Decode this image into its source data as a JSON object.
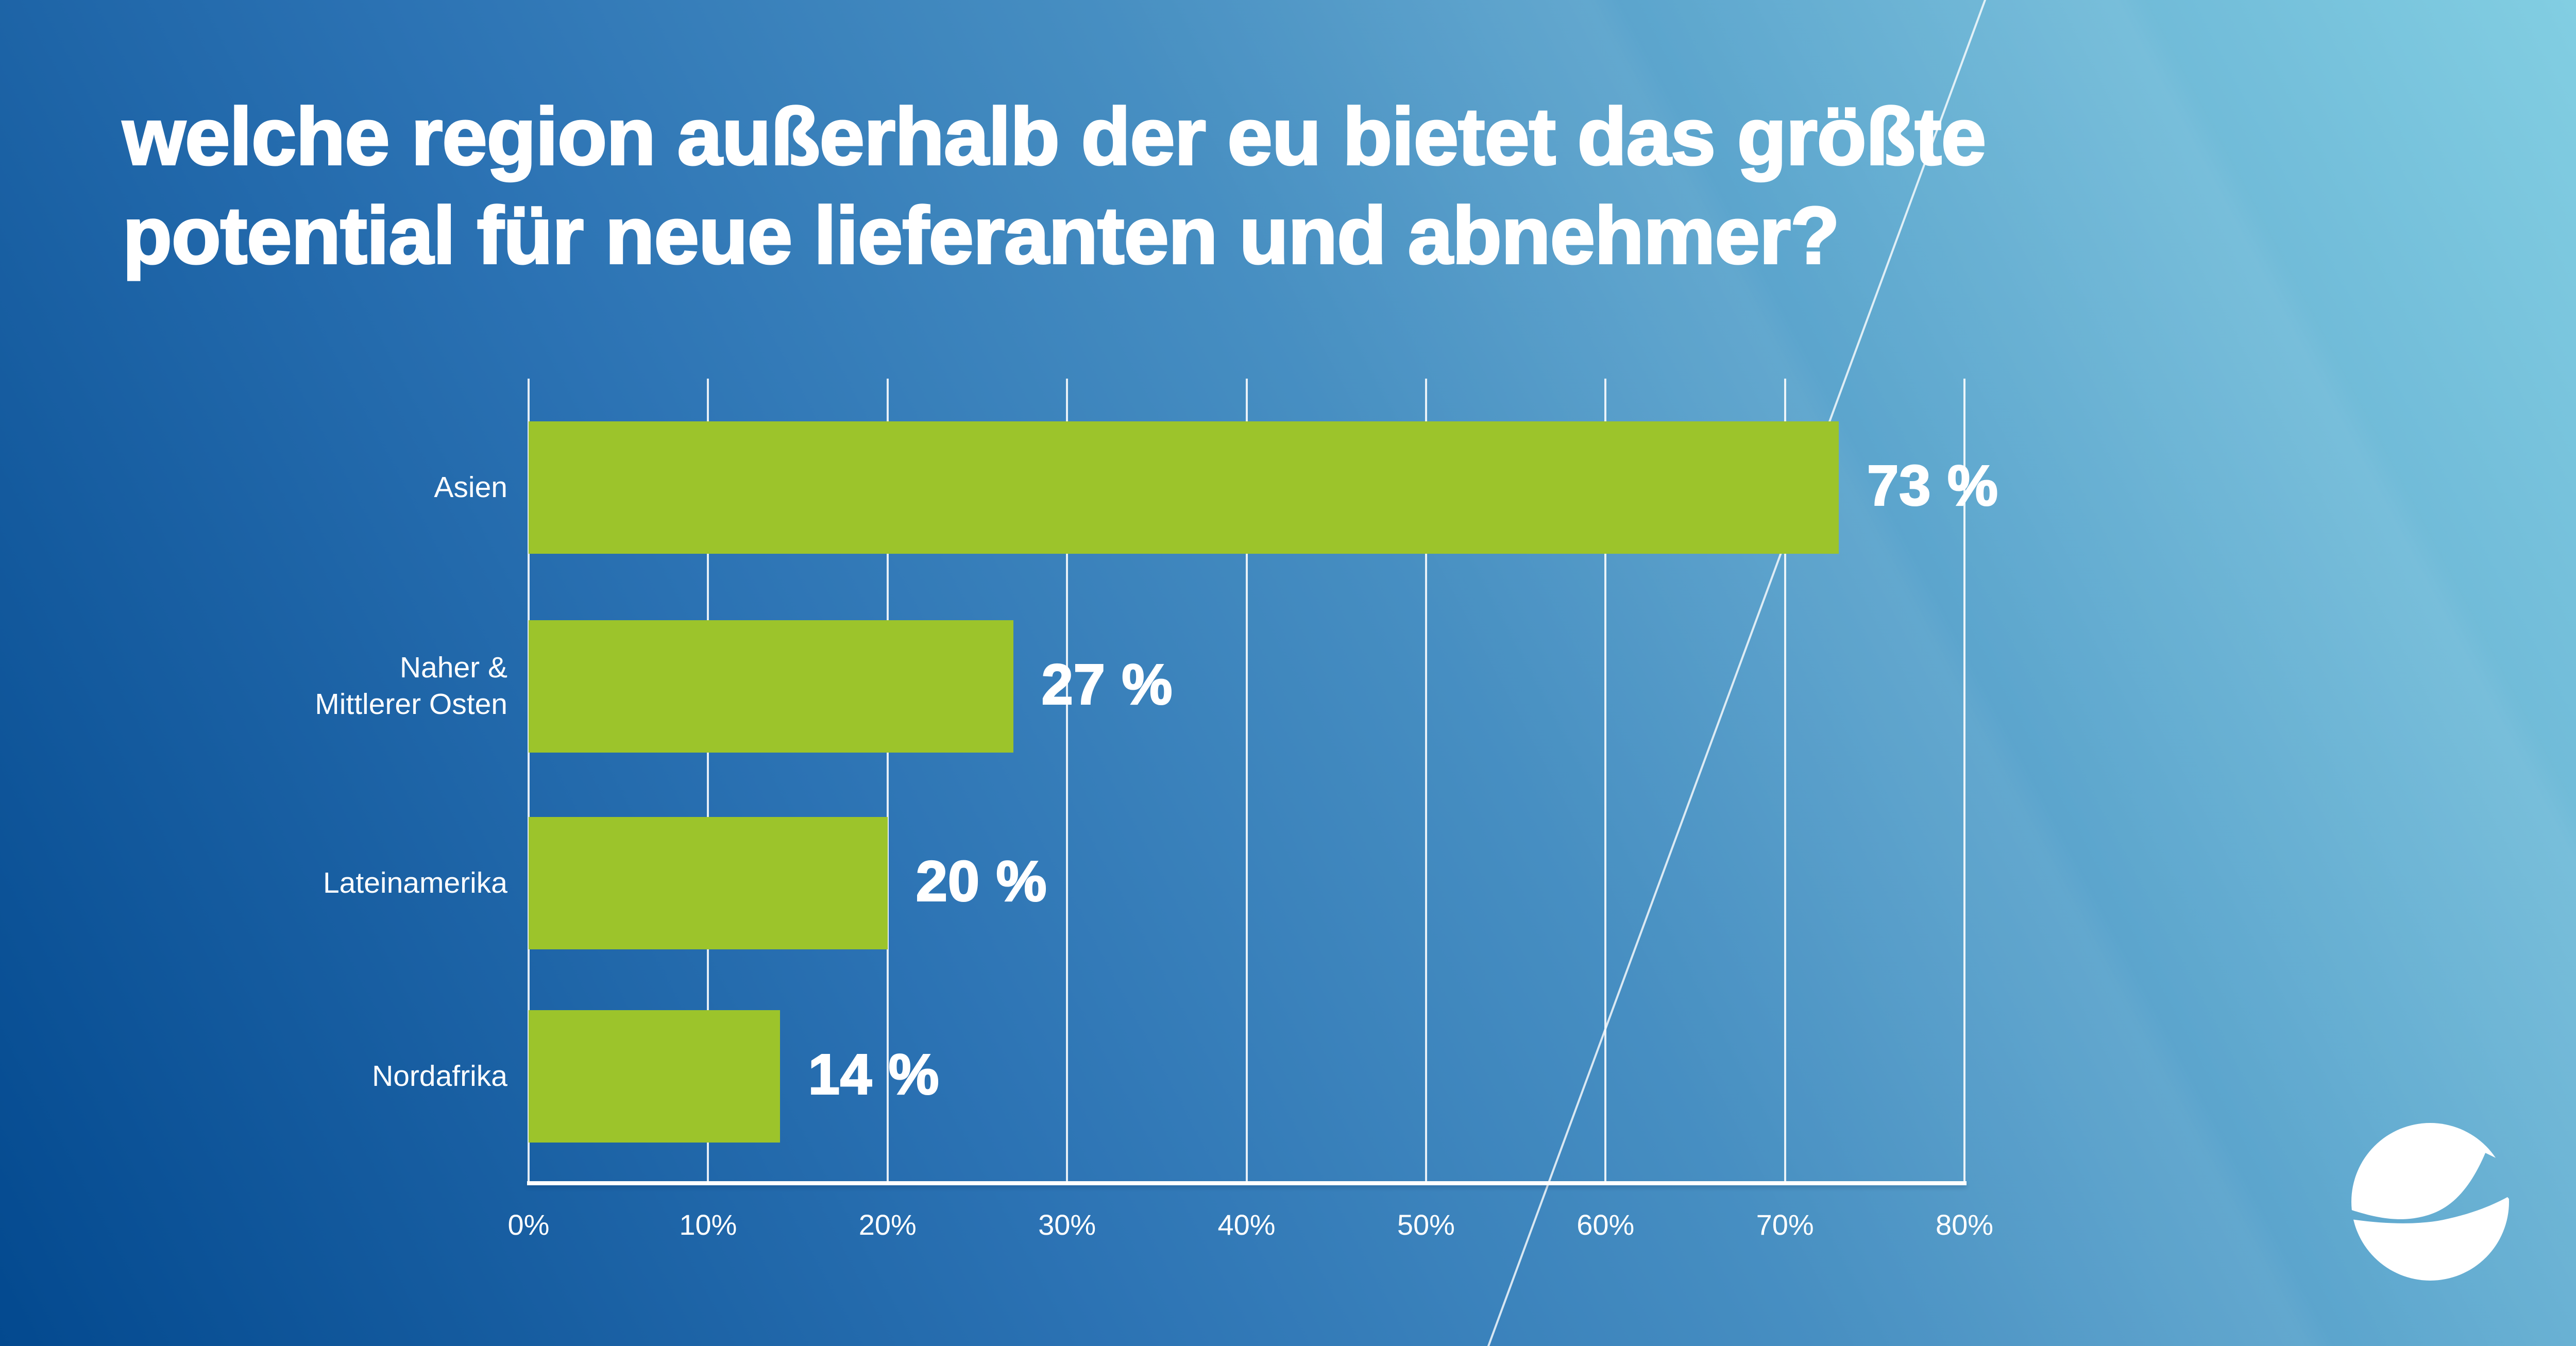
{
  "title": {
    "lines": [
      "welche region außerhalb der eu bietet das größte",
      "potential für neue lieferanten und abnehmer?"
    ],
    "text": "welche region außerhalb der eu bietet das größte potential für neue lieferanten und abnehmer?"
  },
  "chart_data": {
    "type": "bar",
    "orientation": "horizontal",
    "title": "welche region außerhalb der eu bietet das größte potential für neue lieferanten und abnehmer?",
    "categories": [
      "Asien",
      "Naher &\nMittlerer Osten",
      "Lateinamerika",
      "Nordafrika"
    ],
    "values": [
      73,
      27,
      20,
      14
    ],
    "value_labels": [
      "73 %",
      "27 %",
      "20 %",
      "14 %"
    ],
    "unit": "%",
    "x_tick_labels": [
      "0%",
      "10%",
      "20%",
      "30%",
      "40%",
      "50%",
      "60%",
      "70%",
      "80%"
    ],
    "xlim": [
      0,
      80
    ],
    "grid": true,
    "legend": false,
    "bar_color": "#9cc42b"
  },
  "colors": {
    "background_gradient_start": "#03498f",
    "background_gradient_mid": "#2c73b4",
    "background_gradient_end": "#82cee2",
    "bar_green": "#9cc42b",
    "text": "#ffffff",
    "gridline": "#ffffff"
  },
  "logo": {
    "name": "globe-swoosh-logo"
  }
}
